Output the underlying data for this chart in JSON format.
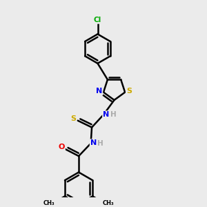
{
  "background_color": "#ebebeb",
  "atom_colors": {
    "C": "#000000",
    "N": "#0000ee",
    "O": "#ee0000",
    "S": "#ccaa00",
    "Cl": "#00aa00",
    "H": "#aaaaaa"
  },
  "bond_color": "#000000",
  "bond_width": 1.8,
  "xlim": [
    0,
    10
  ],
  "ylim": [
    0,
    10
  ]
}
